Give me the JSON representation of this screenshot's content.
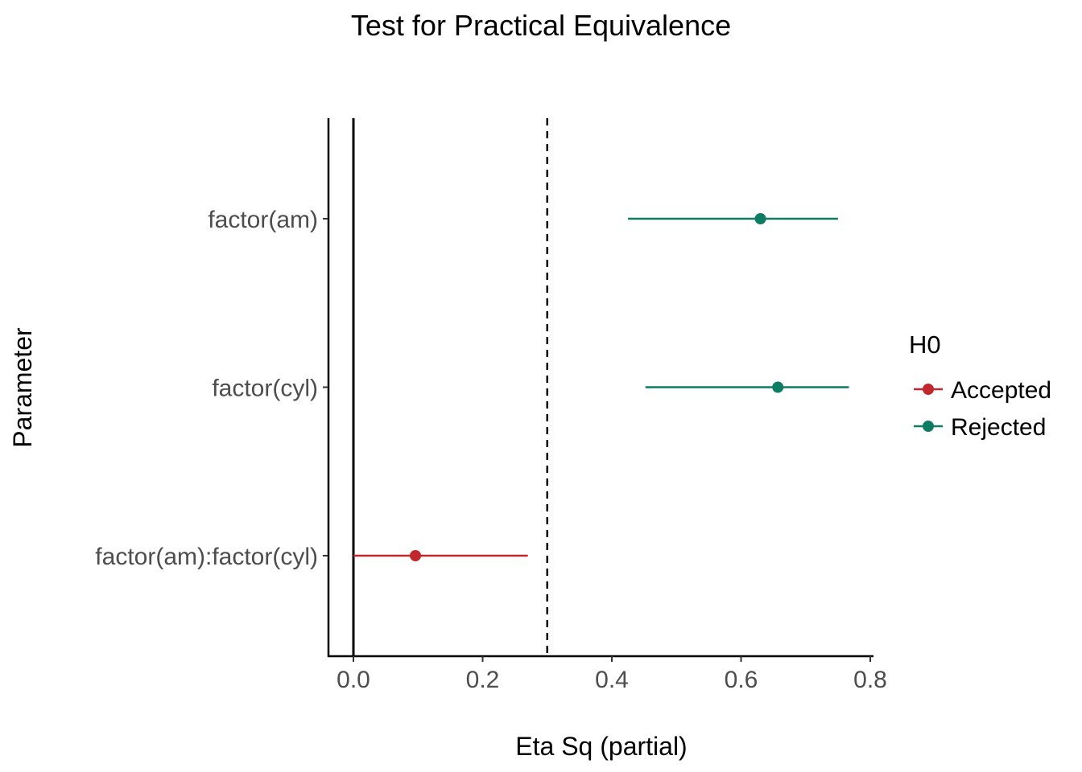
{
  "chart_data": {
    "type": "forest",
    "title": "Test for Practical Equivalence",
    "xlabel": "Eta Sq (partial)",
    "ylabel": "Parameter",
    "xlim": [
      -0.038,
      0.805
    ],
    "x_ticks": [
      0.0,
      0.2,
      0.4,
      0.6,
      0.8
    ],
    "x_tick_labels": [
      "0.0",
      "0.2",
      "0.4",
      "0.6",
      "0.8"
    ],
    "reference_lines": {
      "solid": 0.0,
      "dashed": 0.3
    },
    "grid": false,
    "legend": {
      "title": "H0",
      "placement": "right",
      "entries": [
        {
          "label": "Accepted",
          "color": "#C0282E"
        },
        {
          "label": "Rejected",
          "color": "#0E7B63"
        }
      ]
    },
    "categories": [
      "factor(am)",
      "factor(cyl)",
      "factor(am):factor(cyl)"
    ],
    "points": [
      {
        "parameter": "factor(am)",
        "estimate": 0.63,
        "ci_low": 0.425,
        "ci_high": 0.75,
        "h0": "Rejected"
      },
      {
        "parameter": "factor(cyl)",
        "estimate": 0.657,
        "ci_low": 0.452,
        "ci_high": 0.767,
        "h0": "Rejected"
      },
      {
        "parameter": "factor(am):factor(cyl)",
        "estimate": 0.096,
        "ci_low": 0.0,
        "ci_high": 0.27,
        "h0": "Accepted"
      }
    ]
  }
}
